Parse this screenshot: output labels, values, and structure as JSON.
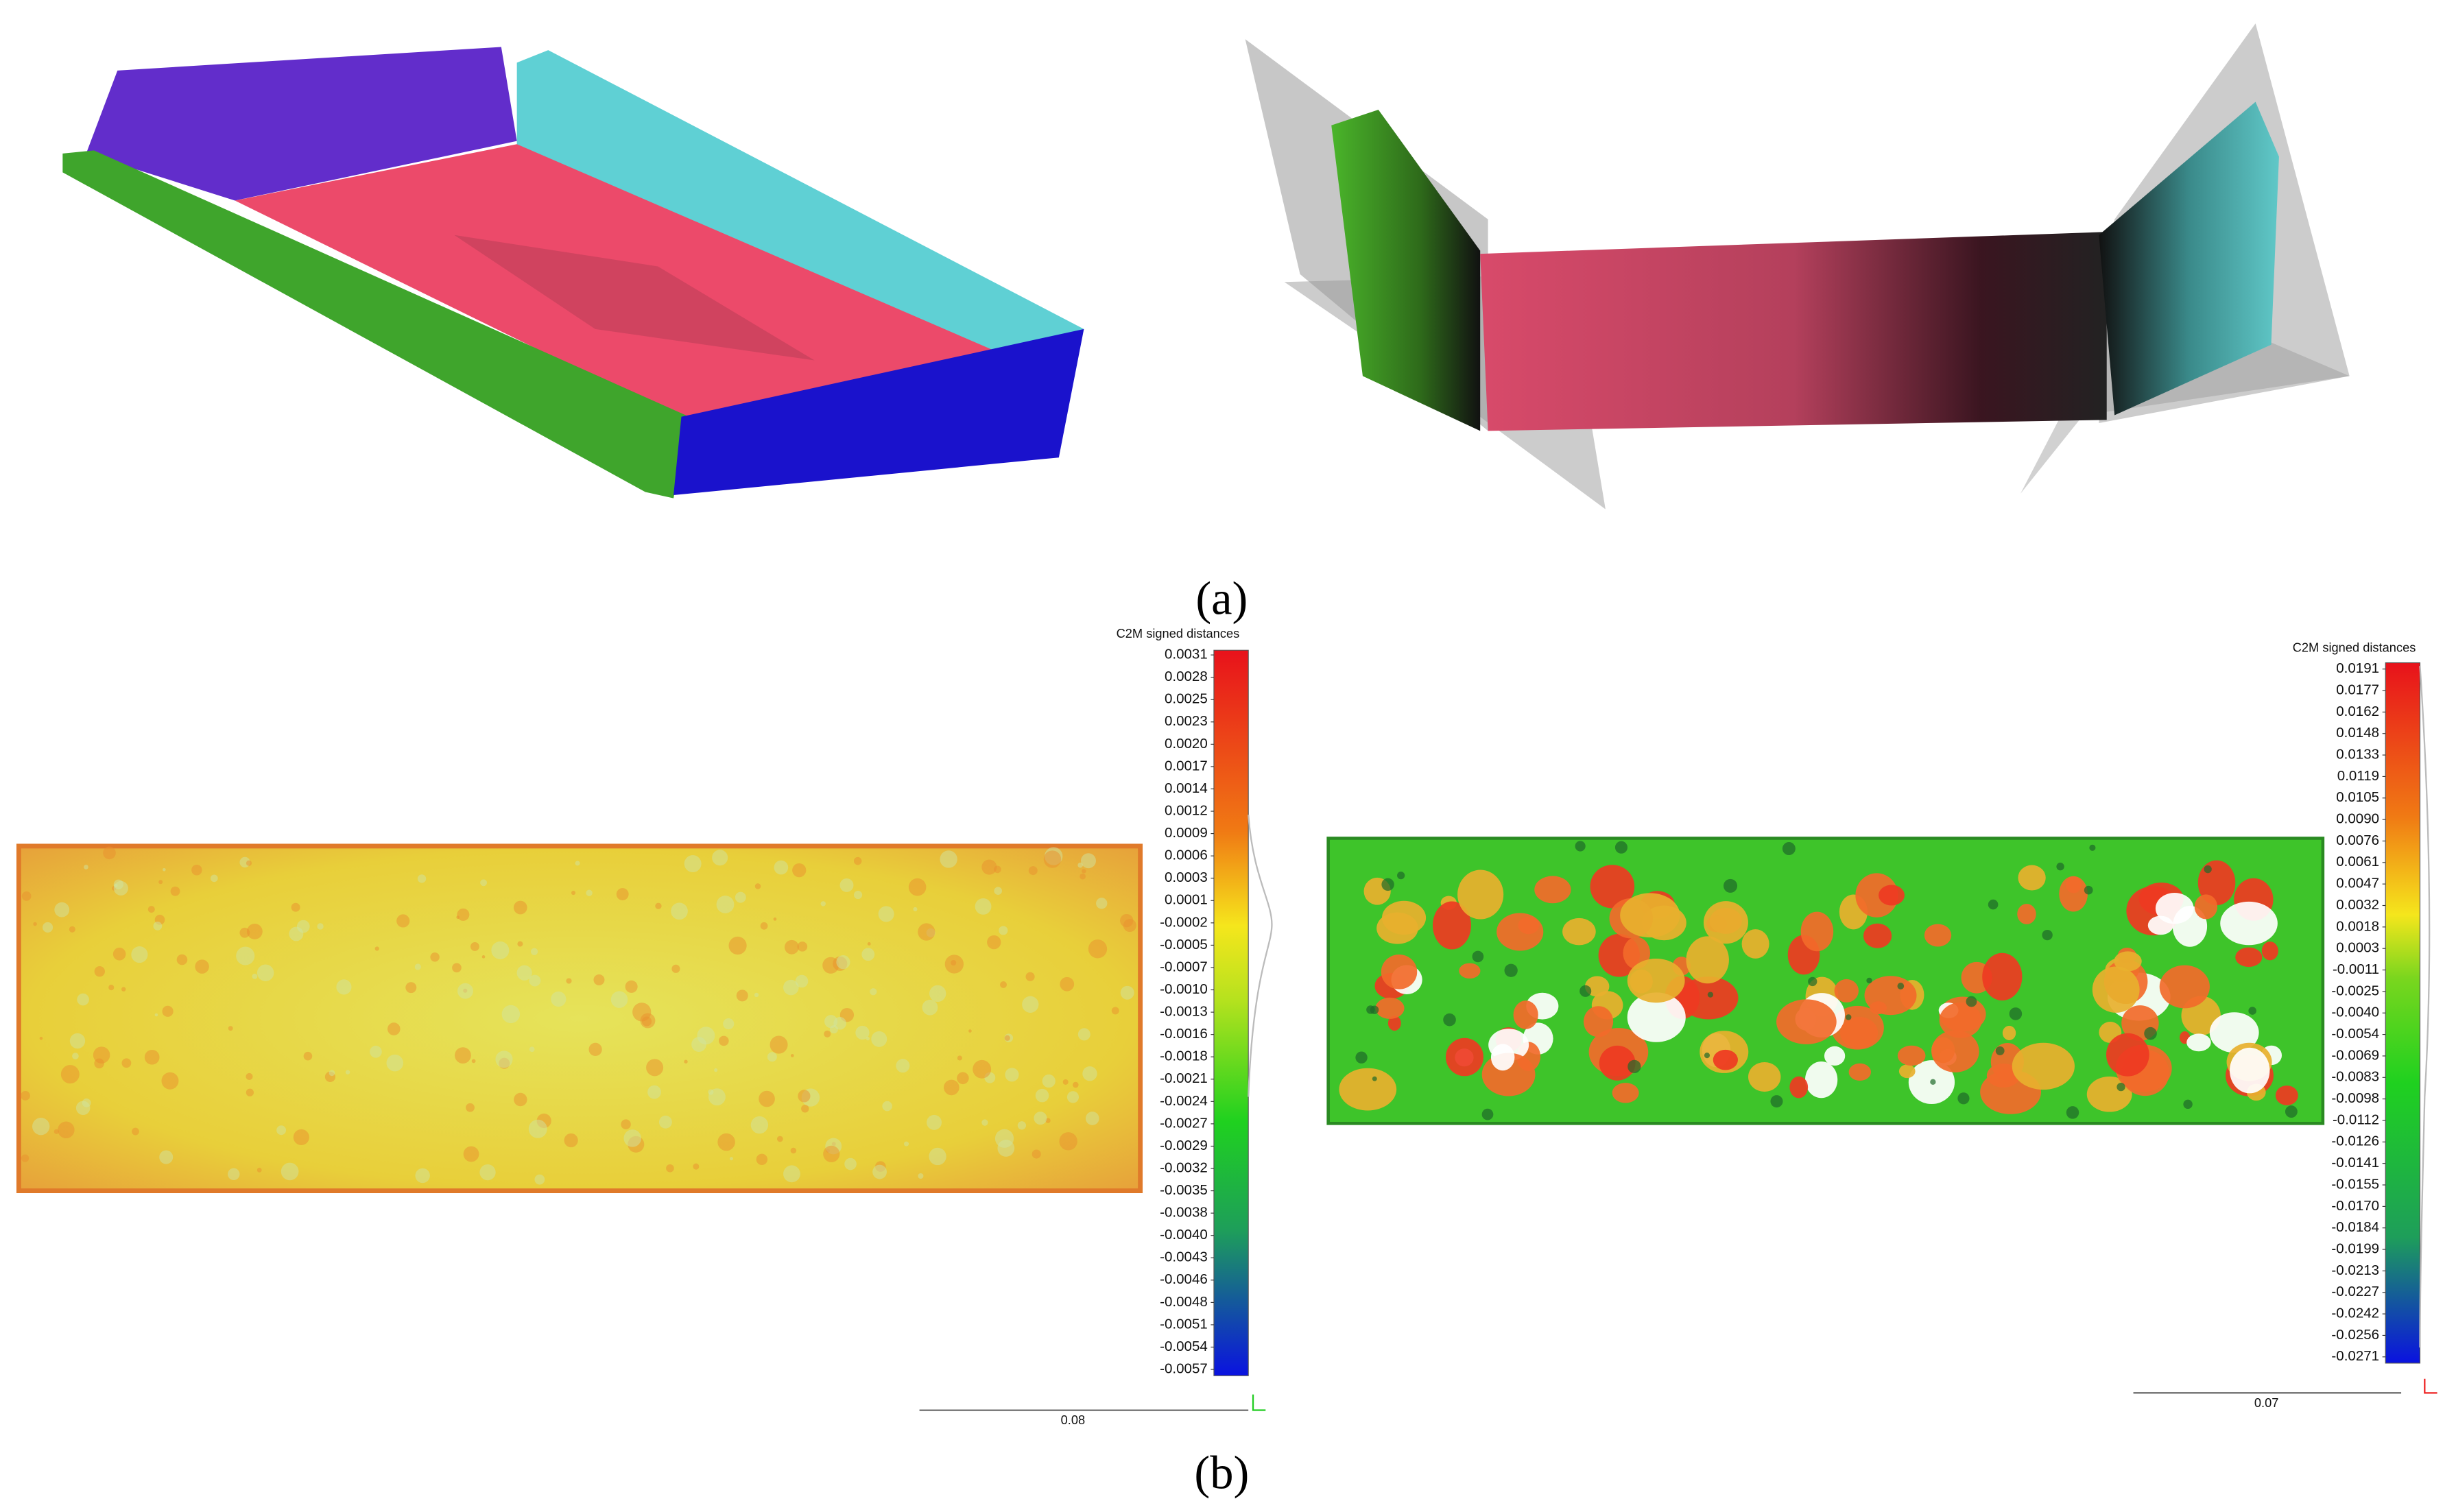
{
  "panels": {
    "a": "(a)",
    "b": "(b)"
  },
  "colorbar_left": {
    "title": "C2M signed distances",
    "ticks": [
      "0.0031",
      "0.0028",
      "0.0025",
      "0.0023",
      "0.0020",
      "0.0017",
      "0.0014",
      "0.0012",
      "0.0009",
      "0.0006",
      "0.0003",
      "0.0001",
      "-0.0002",
      "-0.0005",
      "-0.0007",
      "-0.0010",
      "-0.0013",
      "-0.0016",
      "-0.0018",
      "-0.0021",
      "-0.0024",
      "-0.0027",
      "-0.0029",
      "-0.0032",
      "-0.0035",
      "-0.0038",
      "-0.0040",
      "-0.0043",
      "-0.0046",
      "-0.0048",
      "-0.0051",
      "-0.0054",
      "-0.0057"
    ],
    "scale_bar": "0.08"
  },
  "colorbar_right": {
    "title": "C2M signed distances",
    "ticks": [
      "0.0191",
      "0.0177",
      "0.0162",
      "0.0148",
      "0.0133",
      "0.0119",
      "0.0105",
      "0.0090",
      "0.0076",
      "0.0061",
      "0.0047",
      "0.0032",
      "0.0018",
      "0.0003",
      "-0.0011",
      "-0.0025",
      "-0.0040",
      "-0.0054",
      "-0.0069",
      "-0.0083",
      "-0.0098",
      "-0.0112",
      "-0.0126",
      "-0.0141",
      "-0.0155",
      "-0.0170",
      "-0.0184",
      "-0.0199",
      "-0.0213",
      "-0.0227",
      "-0.0242",
      "-0.0256",
      "-0.0271"
    ],
    "scale_bar": "0.07"
  }
}
